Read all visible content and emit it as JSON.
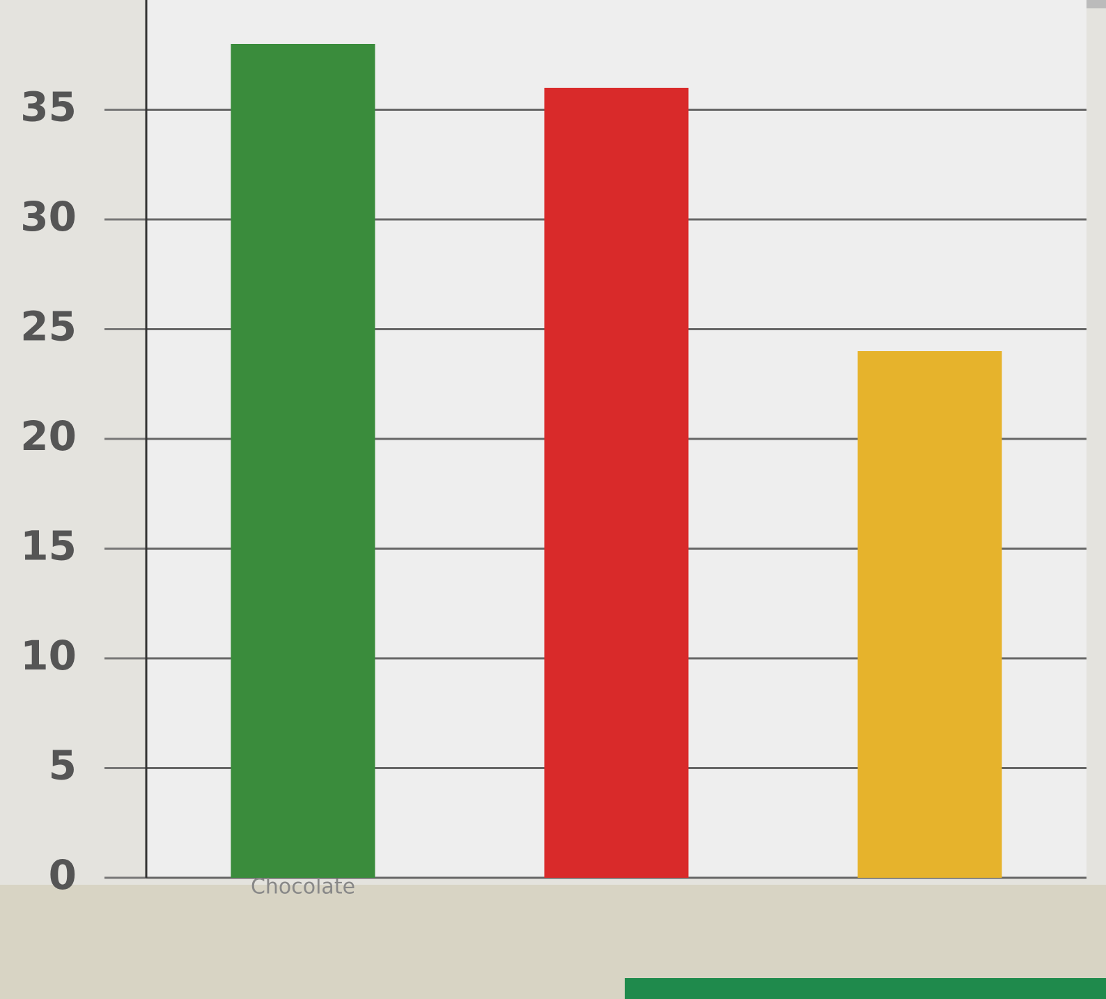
{
  "chart_data": {
    "type": "bar",
    "categories": [
      "Chocolate",
      null,
      null
    ],
    "series": [
      {
        "values": [
          38,
          36,
          24
        ]
      }
    ],
    "colors": [
      "#3a8c3c",
      "#d92a2a",
      "#e6b32c"
    ],
    "ylim": [
      0,
      40
    ],
    "yticks": [
      0,
      5,
      10,
      15,
      20,
      25,
      30,
      35
    ],
    "grid": true
  }
}
